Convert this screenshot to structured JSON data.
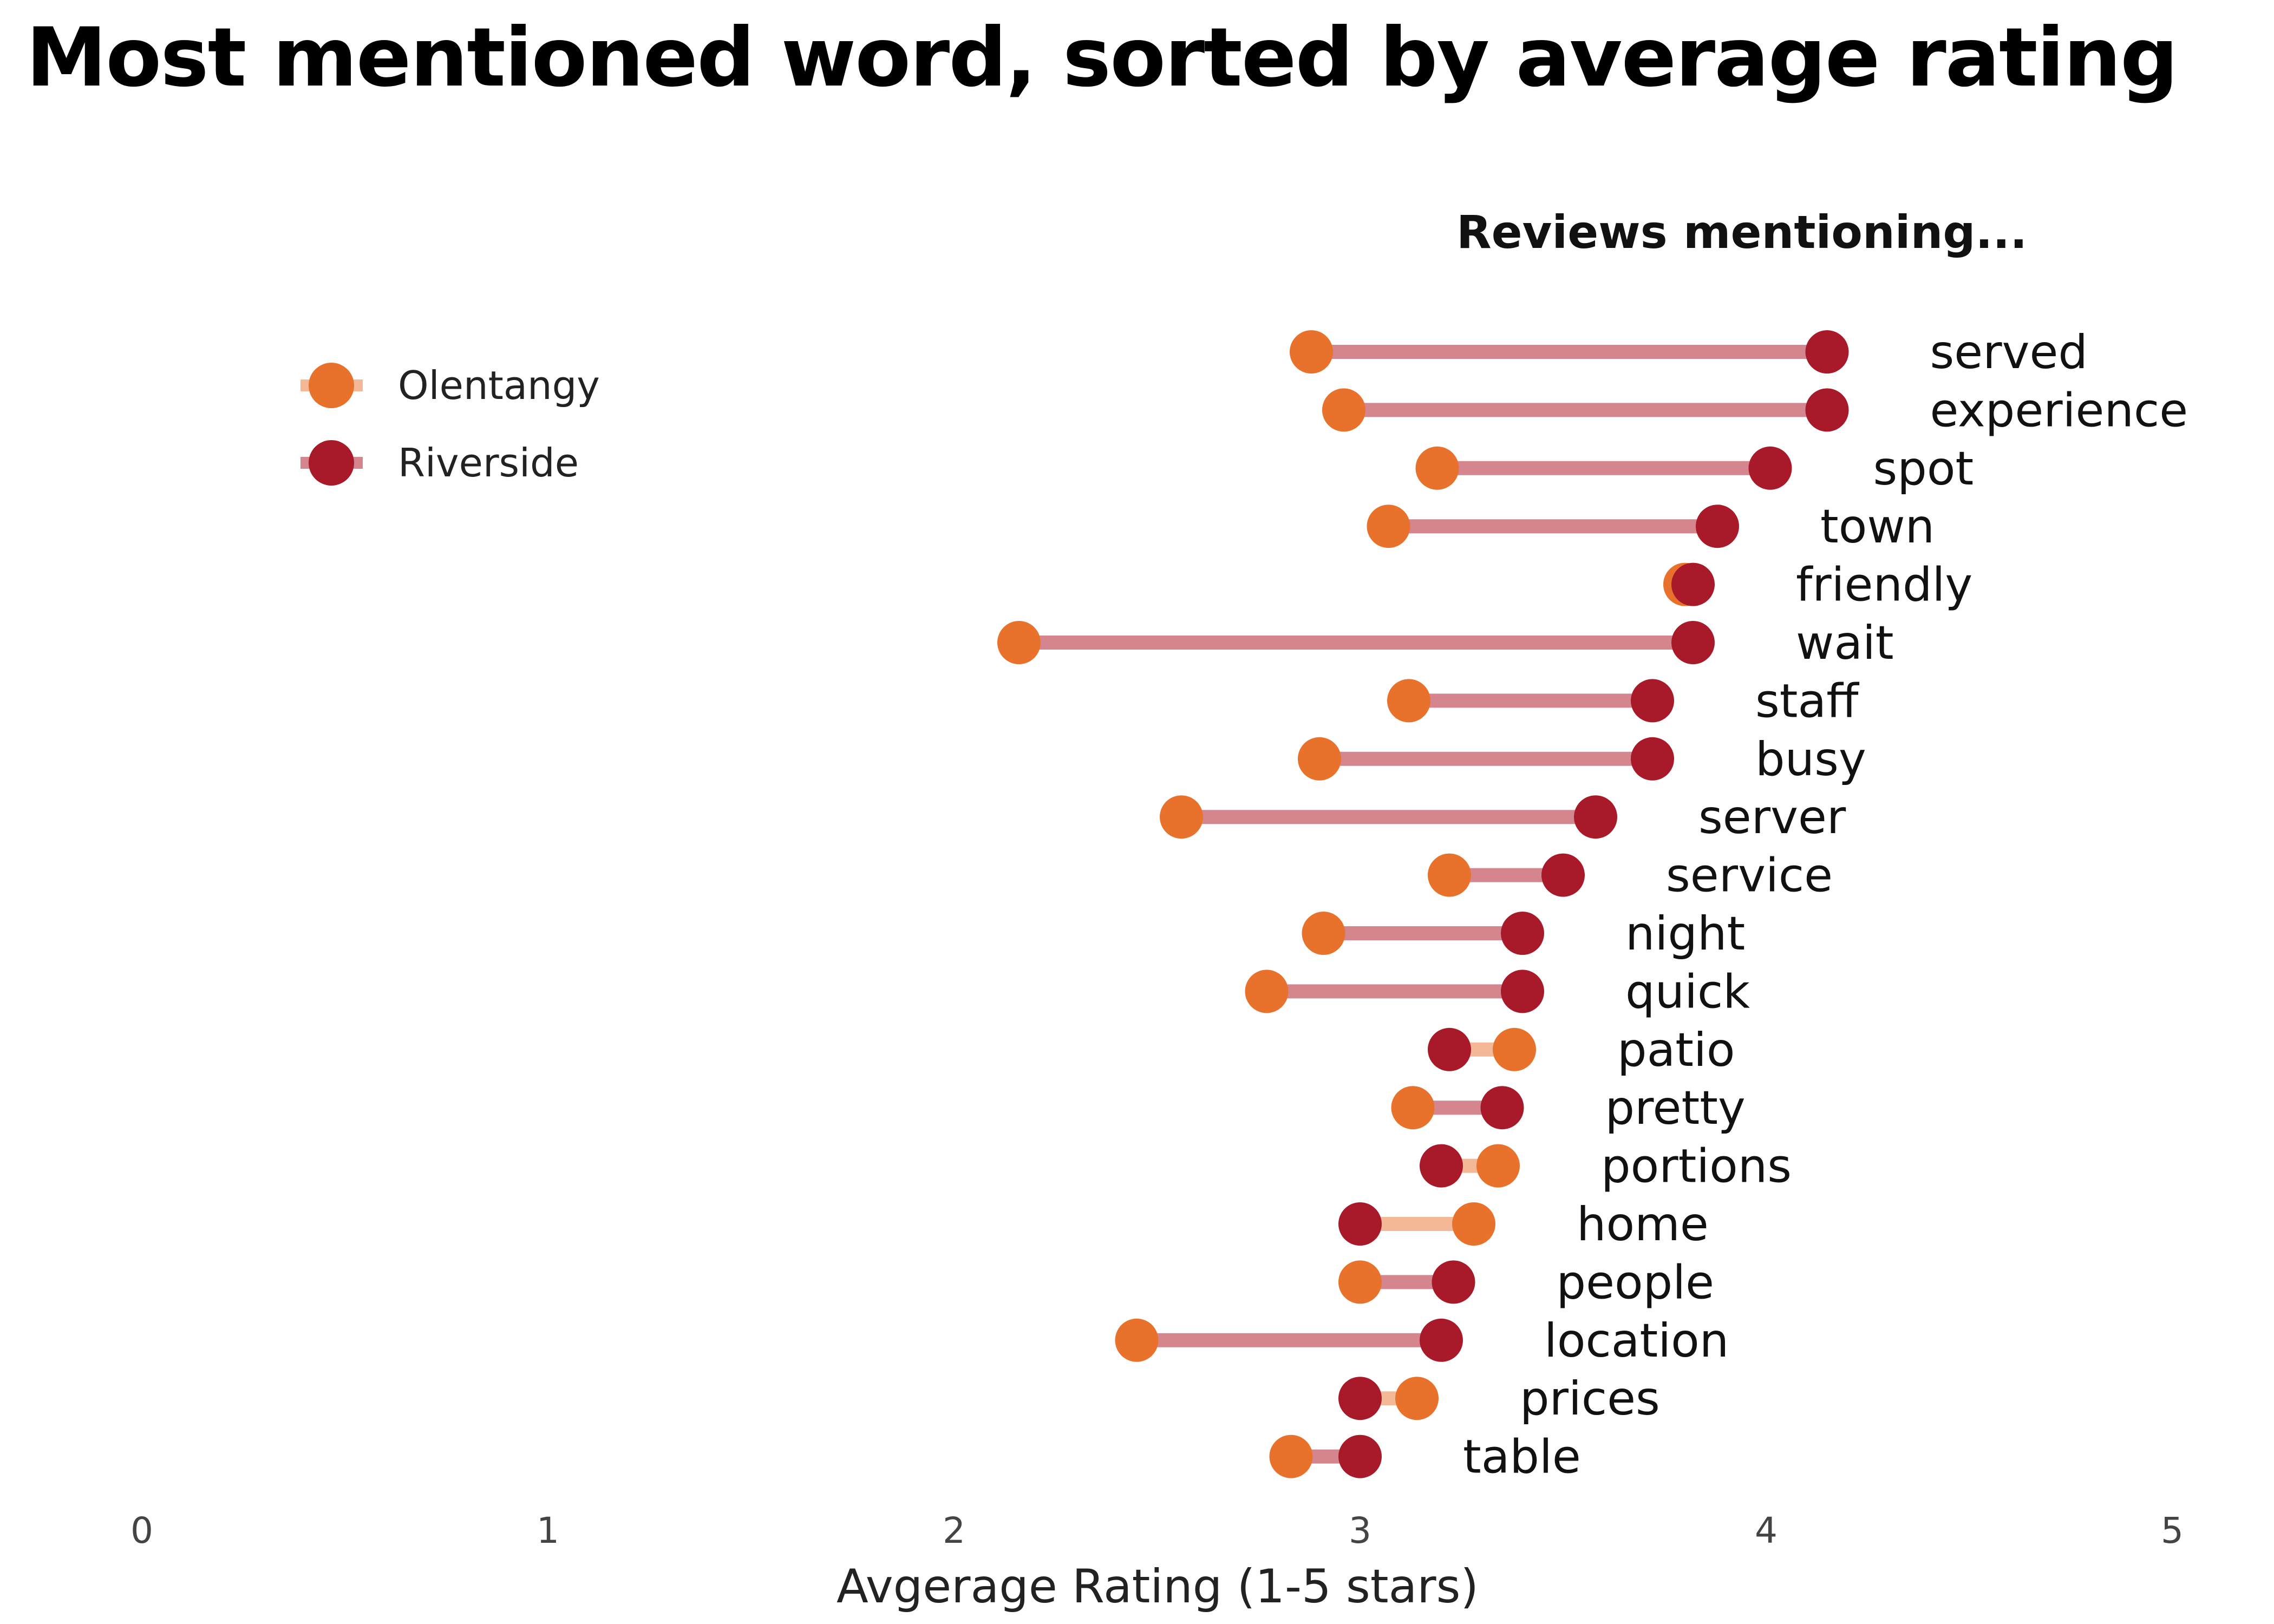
{
  "title": "Most mentioned word, sorted by average rating",
  "subtitle": "Reviews mentioning...",
  "colors": {
    "olentangy": "#E8722C",
    "riverside": "#A81A2A",
    "line_riverside_higher": "#D4858E",
    "line_olentangy_higher": "#F5B896"
  },
  "chart_data": {
    "type": "dumbbell",
    "title": "Most mentioned word, sorted by average rating",
    "subtitle": "Reviews mentioning...",
    "xlabel": "Avgerage Rating (1-5 stars)",
    "ylabel": "",
    "xlim": [
      0,
      5
    ],
    "xticks": [
      "0",
      "1",
      "2",
      "3",
      "4",
      "5"
    ],
    "grid": false,
    "legend_position": "top-left",
    "legend": [
      "Olentangy",
      "Riverside"
    ],
    "categories": [
      "served",
      "experience",
      "spot",
      "town",
      "friendly",
      "wait",
      "staff",
      "busy",
      "server",
      "service",
      "night",
      "quick",
      "patio",
      "pretty",
      "portions",
      "home",
      "people",
      "location",
      "prices",
      "table"
    ],
    "series": [
      {
        "name": "Olentangy",
        "values": [
          2.88,
          2.96,
          3.19,
          3.07,
          3.8,
          2.16,
          3.12,
          2.9,
          2.56,
          3.22,
          2.91,
          2.77,
          3.38,
          3.13,
          3.34,
          3.28,
          3.0,
          2.45,
          3.14,
          2.83
        ]
      },
      {
        "name": "Riverside",
        "values": [
          4.15,
          4.15,
          4.01,
          3.88,
          3.82,
          3.82,
          3.72,
          3.72,
          3.58,
          3.5,
          3.4,
          3.4,
          3.22,
          3.35,
          3.2,
          3.0,
          3.23,
          3.2,
          3.0,
          3.0
        ]
      }
    ]
  }
}
